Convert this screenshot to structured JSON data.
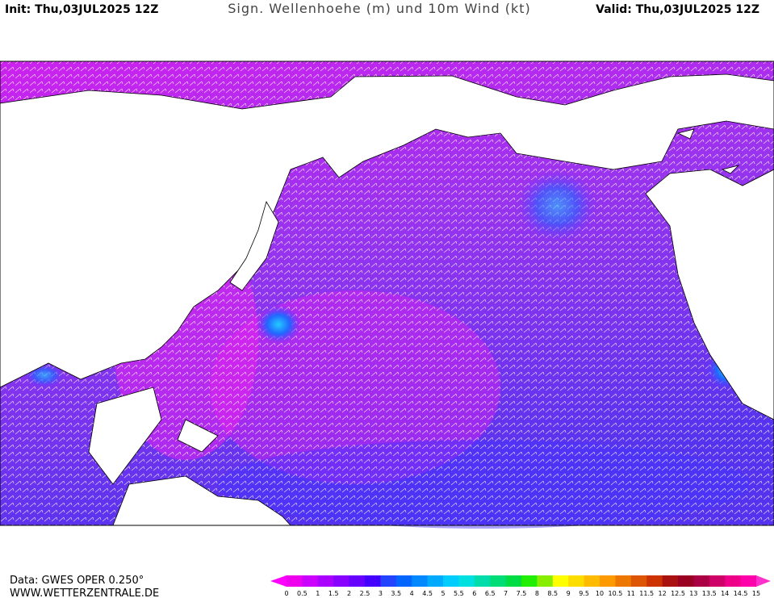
{
  "header": {
    "init": "Init: Thu,03JUL2025 12Z",
    "title": "Sign. Wellenhoehe (m) und 10m Wind (kt)",
    "valid": "Valid: Thu,03JUL2025 12Z"
  },
  "footer": {
    "source": "Data: GWES OPER 0.250°",
    "site": "WWW.WETTERZENTRALE.DE"
  },
  "legend": {
    "ticks": [
      0,
      0.5,
      1,
      1.5,
      2,
      2.5,
      3,
      3.5,
      4,
      4.5,
      5,
      5.5,
      6,
      6.5,
      7,
      7.5,
      8,
      8.5,
      9,
      9.5,
      10,
      10.5,
      11,
      11.5,
      12,
      12.5,
      13,
      13.5,
      14,
      14.5,
      15
    ],
    "colors": [
      "#ee00ee",
      "#cc00ff",
      "#aa00ff",
      "#8800ff",
      "#6600ff",
      "#4400ff",
      "#2244ff",
      "#0066ff",
      "#0088ff",
      "#00aaff",
      "#00ccff",
      "#00e0e0",
      "#00ddaa",
      "#00dd77",
      "#00dd44",
      "#22ee00",
      "#88ee00",
      "#ffff00",
      "#ffdd00",
      "#ffbb00",
      "#ff9900",
      "#ee7700",
      "#dd5500",
      "#cc3300",
      "#aa1111",
      "#990022",
      "#aa0044",
      "#cc0066",
      "#ee0088",
      "#ff00aa"
    ],
    "low_color": "#ff00ff",
    "high_color": "#ff33cc"
  }
}
